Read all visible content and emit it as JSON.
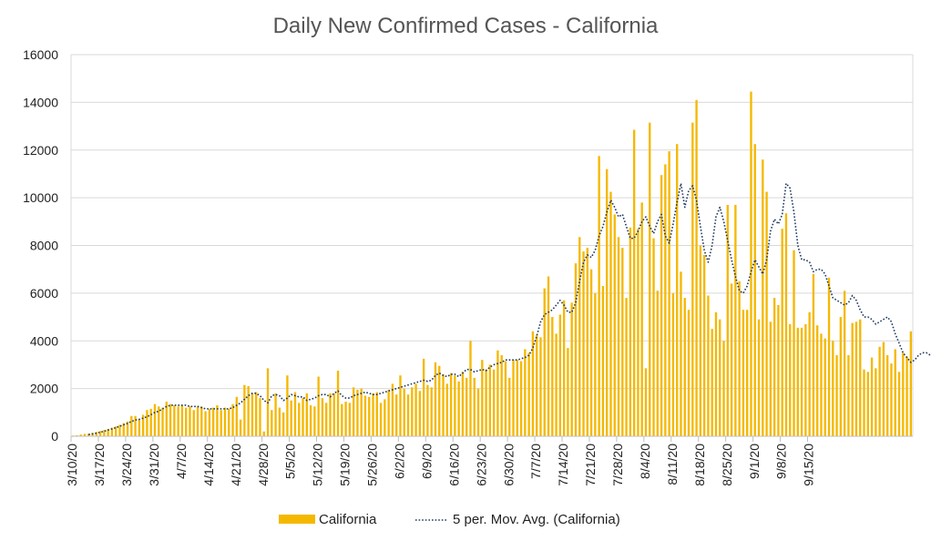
{
  "chart_data": {
    "type": "bar",
    "title": "Daily New Confirmed Cases - California",
    "xlabel": "",
    "ylabel": "",
    "ylim": [
      0,
      16000
    ],
    "yticks": [
      0,
      2000,
      4000,
      6000,
      8000,
      10000,
      12000,
      14000,
      16000
    ],
    "grid": true,
    "legend_position": "bottom",
    "start_date": "3/10/20",
    "xtick_labels": [
      "3/10/20",
      "3/17/20",
      "3/24/20",
      "3/31/20",
      "4/7/20",
      "4/14/20",
      "4/21/20",
      "4/28/20",
      "5/5/20",
      "5/12/20",
      "5/19/20",
      "5/26/20",
      "6/2/20",
      "6/9/20",
      "6/16/20",
      "6/23/20",
      "6/30/20",
      "7/7/20",
      "7/14/20",
      "7/21/20",
      "7/28/20",
      "8/4/20",
      "8/11/20",
      "8/18/20",
      "8/25/20",
      "9/1/20",
      "9/8/20",
      "9/15/20"
    ],
    "colors": {
      "bar": "#F5B800",
      "avg": "#1F3A60",
      "grid": "#D9D9D9",
      "axis": "#BFBFBF"
    },
    "series": [
      {
        "name": "California",
        "kind": "bar",
        "values": [
          30,
          45,
          70,
          100,
          110,
          150,
          180,
          220,
          260,
          310,
          360,
          410,
          480,
          550,
          620,
          850,
          850,
          700,
          900,
          1100,
          1150,
          1350,
          1250,
          1200,
          1450,
          1350,
          1300,
          1250,
          1300,
          1200,
          1250,
          1100,
          1250,
          1250,
          1050,
          1150,
          1200,
          1300,
          1100,
          1200,
          1150,
          1350,
          1650,
          700,
          2150,
          2100,
          1800,
          1850,
          1600,
          200,
          2850,
          1100,
          1800,
          1200,
          1000,
          2550,
          1500,
          1850,
          1400,
          1600,
          1800,
          1300,
          1250,
          2500,
          1600,
          1400,
          1800,
          1800,
          2750,
          1350,
          1450,
          1400,
          2050,
          1950,
          2000,
          1700,
          1650,
          1800,
          1850,
          1400,
          1550,
          1950,
          2200,
          1750,
          2550,
          2000,
          1750,
          2050,
          2200,
          1900,
          3250,
          2150,
          2050,
          3100,
          2950,
          2600,
          2200,
          2650,
          2550,
          2300,
          2700,
          2450,
          4000,
          2450,
          2000,
          3200,
          2800,
          3000,
          2800,
          3600,
          3400,
          3150,
          2450,
          3200,
          3200,
          3150,
          3650,
          3500,
          4400,
          4250,
          4150,
          6200,
          6700,
          5000,
          4300,
          5100,
          5700,
          3700,
          5600,
          7250,
          8350,
          7750,
          7900,
          7000,
          6000,
          11750,
          6300,
          11200,
          10250,
          9300,
          8350,
          7900,
          5800,
          8750,
          12850,
          8700,
          9800,
          2850,
          13150,
          8300,
          6100,
          10950,
          11400,
          11950,
          6000,
          12250,
          6900,
          5800,
          5300,
          13150,
          14100,
          8000,
          7600,
          5900,
          4500,
          5200,
          4900,
          4000,
          9700,
          6400,
          9700,
          6500,
          5300,
          5300,
          14450,
          12250,
          4900,
          11600,
          10250,
          4800,
          5800,
          5500,
          8700,
          9350,
          4700,
          7800,
          4550,
          4550,
          4700,
          5200,
          6800,
          4650,
          4300,
          4100,
          6650,
          4000,
          3400,
          5000,
          6100,
          3400,
          4750,
          4800,
          4900,
          2800,
          2700,
          3300,
          2850,
          3750,
          3950,
          3400,
          3050,
          3650,
          2700,
          3500,
          3350,
          4400
        ]
      },
      {
        "name": "5 per. Mov. Avg. (California)",
        "kind": "line",
        "values": [
          null,
          null,
          null,
          null,
          70,
          95,
          130,
          170,
          210,
          260,
          310,
          360,
          420,
          480,
          540,
          620,
          680,
          710,
          760,
          820,
          900,
          1000,
          1050,
          1150,
          1250,
          1300,
          1300,
          1300,
          1300,
          1300,
          1250,
          1250,
          1250,
          1200,
          1150,
          1150,
          1150,
          1150,
          1150,
          1150,
          1150,
          1200,
          1300,
          1400,
          1550,
          1700,
          1800,
          1800,
          1700,
          1500,
          1400,
          1700,
          1750,
          1700,
          1500,
          1600,
          1750,
          1700,
          1650,
          1650,
          1500,
          1550,
          1600,
          1700,
          1750,
          1750,
          1650,
          1800,
          1900,
          1700,
          1600,
          1600,
          1700,
          1750,
          1800,
          1850,
          1800,
          1750,
          1750,
          1800,
          1850,
          1900,
          1950,
          2000,
          2050,
          2100,
          2150,
          2200,
          2250,
          2300,
          2350,
          2300,
          2350,
          2550,
          2650,
          2550,
          2500,
          2600,
          2600,
          2500,
          2650,
          2800,
          2800,
          2700,
          2750,
          2800,
          2750,
          2900,
          3000,
          3050,
          3100,
          3200,
          3200,
          3200,
          3200,
          3250,
          3300,
          3400,
          3700,
          4200,
          4800,
          5100,
          5200,
          5300,
          5500,
          5700,
          5500,
          5200,
          5200,
          5600,
          6500,
          7300,
          7600,
          7500,
          7800,
          8400,
          8800,
          9400,
          9900,
          9600,
          9200,
          9300,
          8800,
          8300,
          8300,
          8600,
          9000,
          9200,
          8800,
          8500,
          9000,
          9300,
          8400,
          8100,
          8900,
          9800,
          10600,
          9600,
          10300,
          10500,
          9900,
          8800,
          7800,
          7300,
          8000,
          9200,
          9600,
          9000,
          8200,
          7400,
          6700,
          6100,
          6000,
          6300,
          6900,
          7400,
          7100,
          6800,
          7400,
          8600,
          9100,
          8900,
          9300,
          10600,
          10400,
          9400,
          8000,
          7400,
          7400,
          7300,
          6900,
          7000,
          7000,
          6800,
          6300,
          5800,
          5700,
          5600,
          5500,
          5600,
          5900,
          5700,
          5300,
          5000,
          5000,
          4900,
          4700,
          4800,
          4900,
          5000,
          4800,
          4300,
          3900,
          3500,
          3300,
          3100,
          3200,
          3400,
          3500,
          3500,
          3400,
          3300,
          3300,
          3400,
          3500,
          3600
        ]
      }
    ]
  }
}
